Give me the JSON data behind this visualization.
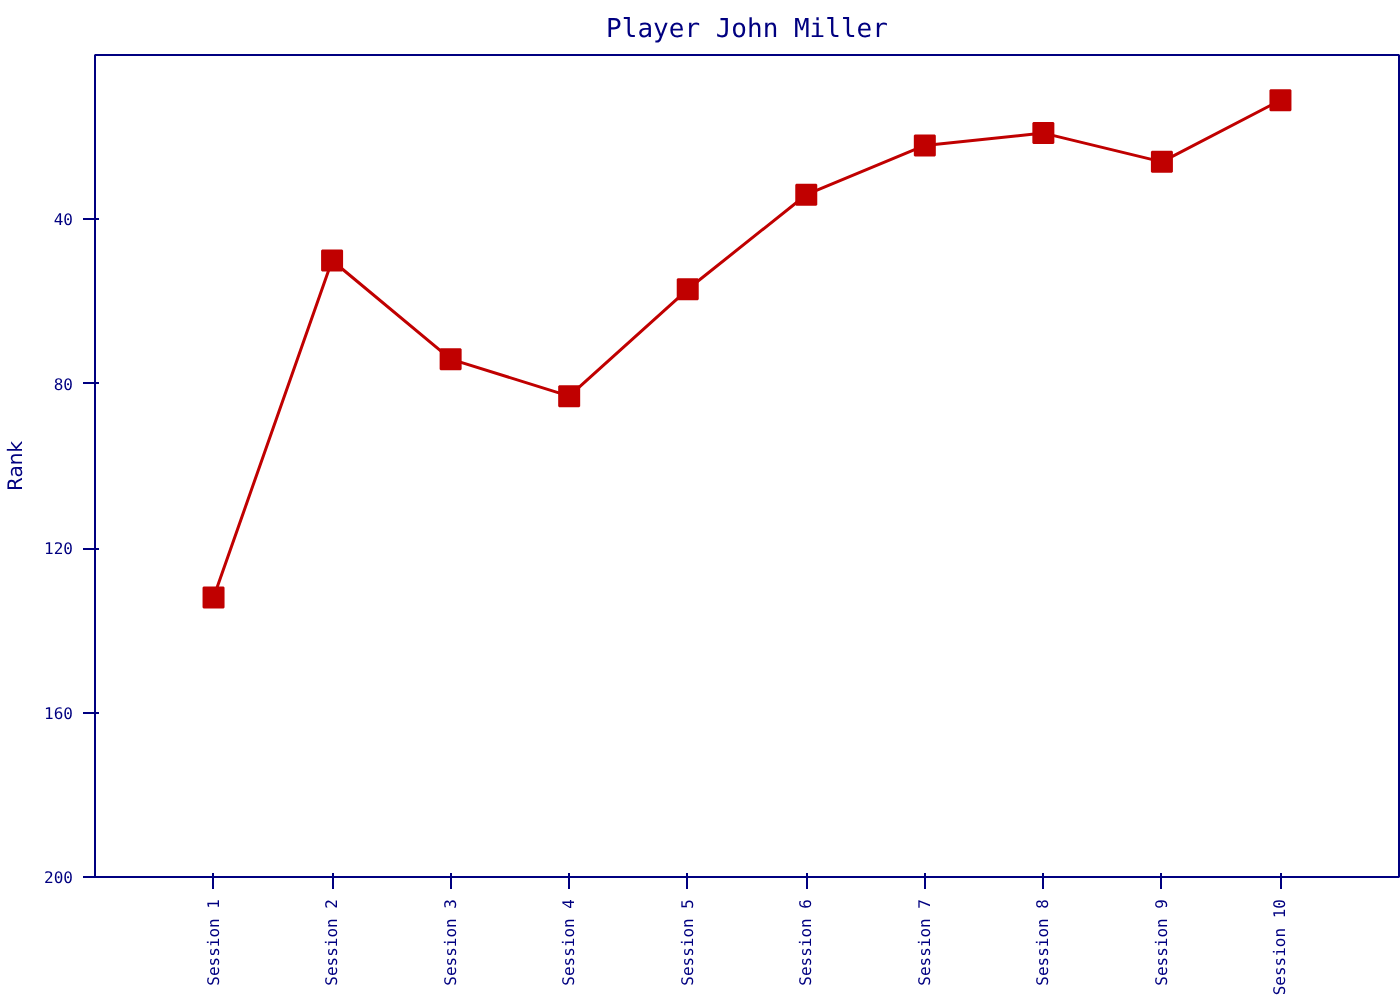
{
  "chart_data": {
    "type": "line",
    "title": "Player John Miller",
    "ylabel": "Rank",
    "categories": [
      "Session 1",
      "Session 2",
      "Session 3",
      "Session 4",
      "Session 5",
      "Session 6",
      "Session 7",
      "Session 8",
      "Session 9",
      "Session 10"
    ],
    "series": [
      {
        "color": "#c00000",
        "values": [
          132,
          50,
          74,
          83,
          57,
          34,
          22,
          19,
          26,
          11
        ]
      }
    ],
    "ylim": [
      200,
      0
    ],
    "yticks": [
      40,
      80,
      120,
      160,
      200
    ],
    "grid": false,
    "marker": "square",
    "line_style": "solid"
  }
}
